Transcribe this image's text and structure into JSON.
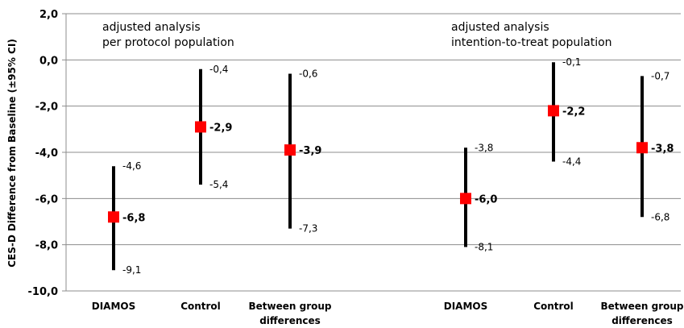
{
  "chart_data": {
    "type": "scatter",
    "ylabel": "CES-D Difference from Baseline (±95% CI)",
    "ylim": [
      -10,
      2
    ],
    "y_ticks": [
      "2,0",
      "0,0",
      "-2,0",
      "-4,0",
      "-6,0",
      "-8,0",
      "-10,0"
    ],
    "y_tick_values": [
      2,
      0,
      -2,
      -4,
      -6,
      -8,
      -10
    ],
    "grid": true,
    "marker_color": "#ff0000",
    "errorbar_color": "#000000",
    "panels": [
      {
        "annotation_lines": [
          "adjusted analysis",
          "per protocol population"
        ],
        "groups": [
          {
            "category_lines": [
              "DIAMOS"
            ],
            "value": -6.8,
            "lower": -9.1,
            "upper": -4.6,
            "value_label": "-6,8",
            "lower_label": "-9,1",
            "upper_label": "-4,6"
          },
          {
            "category_lines": [
              "Control"
            ],
            "value": -2.9,
            "lower": -5.4,
            "upper": -0.4,
            "value_label": "-2,9",
            "lower_label": "-5,4",
            "upper_label": "-0,4"
          },
          {
            "category_lines": [
              "Between group",
              "differences"
            ],
            "value": -3.9,
            "lower": -7.3,
            "upper": -0.6,
            "value_label": "-3,9",
            "lower_label": "-7,3",
            "upper_label": "-0,6"
          }
        ]
      },
      {
        "annotation_lines": [
          "adjusted analysis",
          "intention-to-treat population"
        ],
        "groups": [
          {
            "category_lines": [
              "DIAMOS"
            ],
            "value": -6.0,
            "lower": -8.1,
            "upper": -3.8,
            "value_label": "-6,0",
            "lower_label": "-8,1",
            "upper_label": "-3,8"
          },
          {
            "category_lines": [
              "Control"
            ],
            "value": -2.2,
            "lower": -4.4,
            "upper": -0.1,
            "value_label": "-2,2",
            "lower_label": "-4,4",
            "upper_label": "-0,1"
          },
          {
            "category_lines": [
              "Between group",
              "differences"
            ],
            "value": -3.8,
            "lower": -6.8,
            "upper": -0.7,
            "value_label": "-3,8",
            "lower_label": "-6,8",
            "upper_label": "-0,7"
          }
        ]
      }
    ]
  }
}
